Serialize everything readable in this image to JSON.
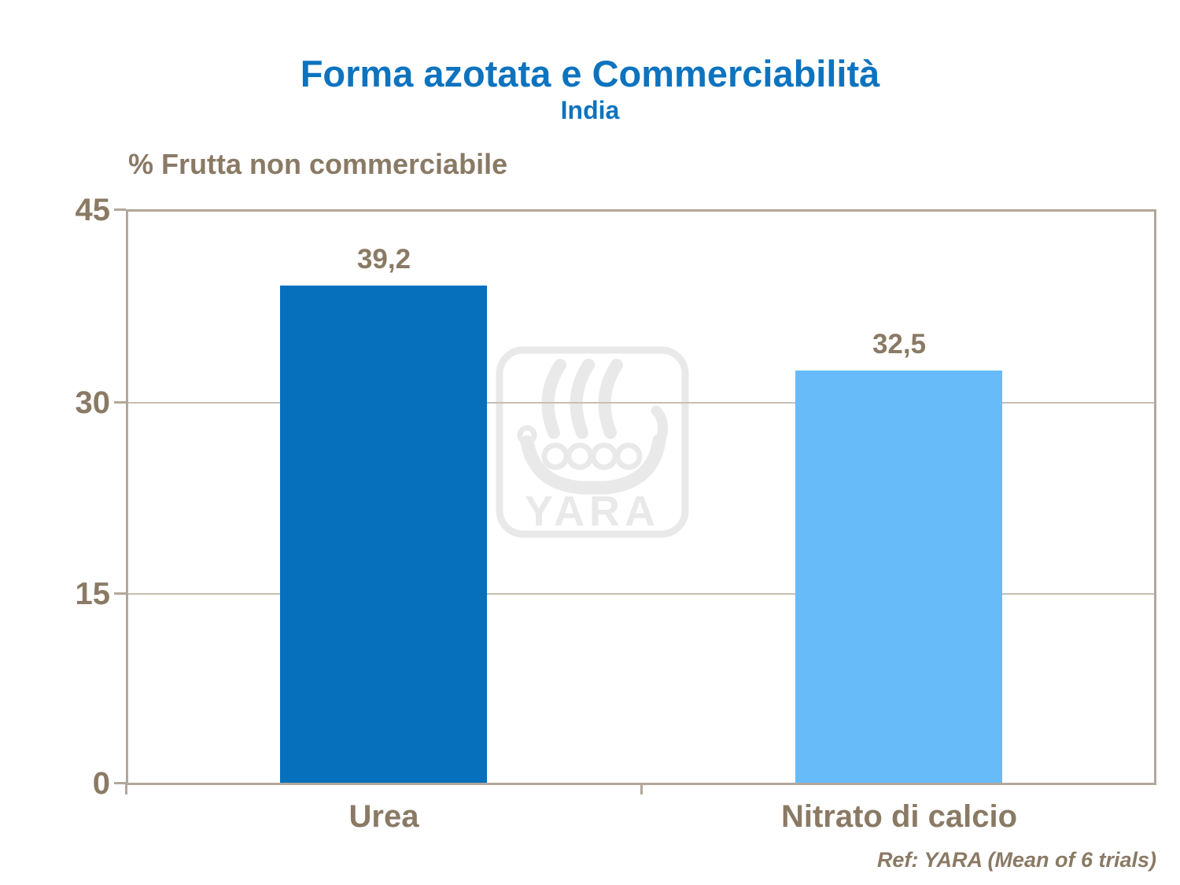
{
  "title": {
    "text": "Forma azotata e Commerciabilità",
    "color": "#0D73BF"
  },
  "subtitle": {
    "text": "India",
    "color": "#0D73BF"
  },
  "axis_title": {
    "text": "% Frutta non commerciabile",
    "color": "#8A7A65"
  },
  "footer": {
    "text": "Ref: YARA (Mean of 6 trials)",
    "color": "#8A7A65"
  },
  "watermark": {
    "text": "YARA",
    "name": "yara-viking-ship-logo",
    "color": "#E9E9E9"
  },
  "chart_data": {
    "type": "bar",
    "title": "Forma azotata e Commerciabilità",
    "subtitle": "India",
    "ylabel": "% Frutta non commerciabile",
    "xlabel": "",
    "categories": [
      "Urea",
      "Nitrato di calcio"
    ],
    "values": [
      39.2,
      32.5
    ],
    "value_labels": [
      "39,2",
      "32,5"
    ],
    "bar_colors": [
      "#0670BD",
      "#67BBF8"
    ],
    "ylim": [
      0,
      45
    ],
    "yticks": [
      "0",
      "15",
      "30",
      "45"
    ],
    "gridlines_at": [
      15,
      30
    ],
    "grid": "horizontal",
    "legend": "none",
    "annotation": "Ref: YARA (Mean of 6 trials)"
  },
  "colors": {
    "axis_frame": "#B2A79B",
    "gridline": "#C8BEB2",
    "tick_label": "#8A7A65",
    "background": "#FFFFFF"
  }
}
